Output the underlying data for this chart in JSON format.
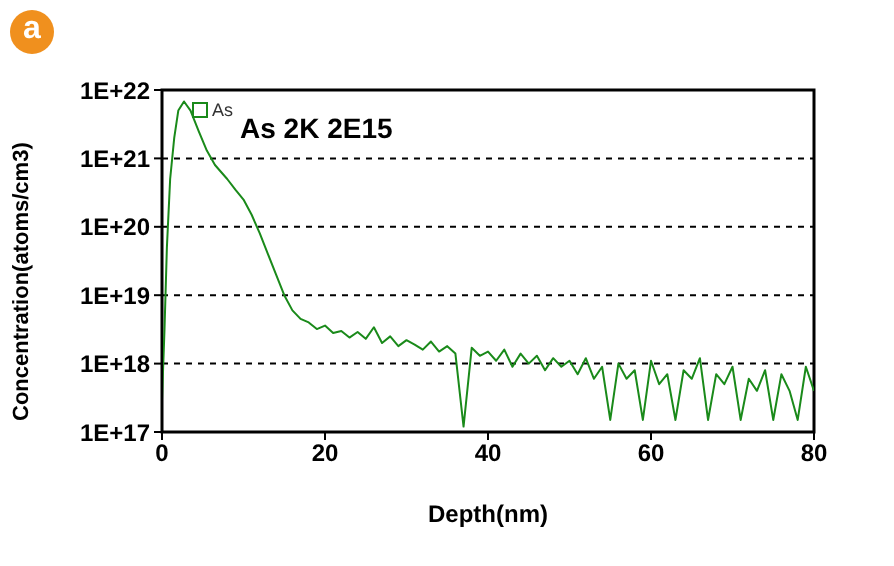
{
  "chart_data": {
    "type": "line",
    "xlabel": "Depth(nm)",
    "ylabel": "Concentration(atoms/cm3)",
    "annotations": [
      "a",
      "As 2K 2E15"
    ],
    "xlim": [
      0,
      80
    ],
    "xticks": [
      0,
      20,
      40,
      60,
      80
    ],
    "ylim": [
      1e+17,
      1e+22
    ],
    "yticks": [
      {
        "value": 1e+17,
        "label": "1E+17"
      },
      {
        "value": 1e+18,
        "label": "1E+18"
      },
      {
        "value": 1e+19,
        "label": "1E+19"
      },
      {
        "value": 1e+20,
        "label": "1E+20"
      },
      {
        "value": 1e+21,
        "label": "1E+21"
      },
      {
        "value": 1e+22,
        "label": "1E+22"
      }
    ],
    "log": "y",
    "grid": "y",
    "legend": "top left",
    "marker": "none",
    "line_style": "solid",
    "series": [
      {
        "name": "As",
        "color": "#1a8a1a",
        "x": [
          0,
          0.3,
          0.6,
          1,
          1.5,
          2,
          2.7,
          3.5,
          4.5,
          5.5,
          6.5,
          8,
          9,
          10,
          11,
          12,
          13,
          14,
          15,
          16,
          17,
          18,
          19,
          20,
          21,
          22,
          23,
          24,
          25,
          26,
          27,
          28,
          29,
          30,
          31,
          32,
          33,
          34,
          35,
          36,
          37,
          38,
          39,
          40,
          41,
          42,
          43,
          44,
          45,
          46,
          47,
          48,
          49,
          50,
          51,
          52,
          53,
          54,
          55,
          56,
          57,
          58,
          59,
          60,
          61,
          62,
          63,
          64,
          65,
          66,
          67,
          68,
          69,
          70,
          71,
          72,
          73,
          74,
          75,
          76,
          77,
          78,
          79,
          80
        ],
        "values": [
          3e+17,
          3e+18,
          5e+19,
          5e+20,
          2e+21,
          5e+21,
          6.8e+21,
          5e+21,
          2.5e+21,
          1.3e+21,
          8e+20,
          5e+20,
          3.5e+20,
          2.5e+20,
          1.5e+20,
          8e+19,
          4e+19,
          2e+19,
          1e+19,
          6e+18,
          4.5e+18,
          4e+18,
          3.2e+18,
          3.6e+18,
          2.8e+18,
          3e+18,
          2.4e+18,
          2.9e+18,
          2.3e+18,
          3.4e+18,
          2e+18,
          2.5e+18,
          1.8e+18,
          2.2e+18,
          1.9e+18,
          1.6e+18,
          2.1e+18,
          1.5e+18,
          1.8e+18,
          1.4e+18,
          1.2e+17,
          1.7e+18,
          1.3e+18,
          1.5e+18,
          1.1e+18,
          1.6e+18,
          9e+17,
          1.4e+18,
          1e+18,
          1.3e+18,
          8e+17,
          1.2e+18,
          9e+17,
          1.1e+18,
          7e+17,
          1.2e+18,
          6e+17,
          9e+17,
          1.5e+17,
          1e+18,
          6e+17,
          8e+17,
          1.5e+17,
          1.1e+18,
          5e+17,
          7e+17,
          1.5e+17,
          8e+17,
          6e+17,
          1.2e+18,
          1.5e+17,
          7e+17,
          5e+17,
          9e+17,
          1.5e+17,
          6e+17,
          4e+17,
          8e+17,
          1.5e+17,
          7e+17,
          4e+17,
          1.5e+17,
          9e+17,
          4e+17
        ]
      }
    ]
  }
}
